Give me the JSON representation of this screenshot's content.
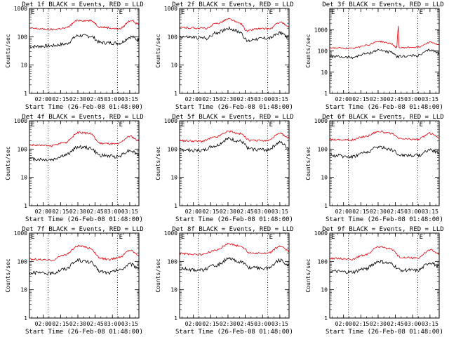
{
  "chart_data": [
    {
      "type": "line",
      "title": "Det 1f BLACK = Events, RED = LLD",
      "xlabel": "Start Time (26-Feb-08 01:48:00)",
      "ylabel": "Counts/sec",
      "x_ticks": [
        "02:00",
        "02:15",
        "02:30",
        "02:45",
        "03:00",
        "03:15"
      ],
      "y_ticks": [
        "1",
        "10",
        "100",
        "1000"
      ],
      "ylim": [
        1,
        1000
      ],
      "y_scale": "log",
      "top_markers": [
        "E",
        "E"
      ],
      "series": [
        {
          "name": "Events",
          "color": "#000000",
          "shape": [
            [
              0,
              45
            ],
            [
              0.2,
              48
            ],
            [
              0.32,
              55
            ],
            [
              0.45,
              110
            ],
            [
              0.56,
              105
            ],
            [
              0.65,
              62
            ],
            [
              0.82,
              60
            ],
            [
              0.93,
              100
            ],
            [
              1,
              75
            ]
          ]
        },
        {
          "name": "LLD",
          "color": "#e8000b",
          "shape": [
            [
              0,
              200
            ],
            [
              0.2,
              180
            ],
            [
              0.32,
              200
            ],
            [
              0.45,
              380
            ],
            [
              0.56,
              370
            ],
            [
              0.65,
              220
            ],
            [
              0.82,
              190
            ],
            [
              0.93,
              380
            ],
            [
              1,
              270
            ]
          ]
        }
      ]
    },
    {
      "type": "line",
      "title": "Det 2f BLACK = Events, RED = LLD",
      "xlabel": "Start Time (26-Feb-08 01:48:00)",
      "ylabel": "Counts/sec",
      "x_ticks": [
        "02:00",
        "02:15",
        "02:30",
        "02:45",
        "03:00",
        "03:15"
      ],
      "y_ticks": [
        "1",
        "10",
        "100",
        "1000"
      ],
      "ylim": [
        1,
        1000
      ],
      "y_scale": "log",
      "top_markers": [
        "E",
        "E"
      ],
      "series": [
        {
          "name": "Events",
          "color": "#000000",
          "shape": [
            [
              0,
              100
            ],
            [
              0.25,
              90
            ],
            [
              0.34,
              140
            ],
            [
              0.45,
              200
            ],
            [
              0.55,
              150
            ],
            [
              0.62,
              70
            ],
            [
              0.7,
              85
            ],
            [
              0.82,
              90
            ],
            [
              0.92,
              140
            ],
            [
              1,
              95
            ]
          ]
        },
        {
          "name": "LLD",
          "color": "#e8000b",
          "shape": [
            [
              0,
              210
            ],
            [
              0.25,
              200
            ],
            [
              0.34,
              300
            ],
            [
              0.45,
              420
            ],
            [
              0.55,
              300
            ],
            [
              0.62,
              160
            ],
            [
              0.7,
              190
            ],
            [
              0.82,
              190
            ],
            [
              0.92,
              330
            ],
            [
              1,
              220
            ]
          ]
        }
      ]
    },
    {
      "type": "line",
      "title": "Det 3f BLACK = Events, RED = LLD",
      "xlabel": "Start Time (26-Feb-08 01:48:00)",
      "ylabel": "Counts/sec",
      "x_ticks": [
        "02:00",
        "02:15",
        "02:30",
        "02:45",
        "03:00",
        "03:15"
      ],
      "y_ticks": [
        "1",
        "10",
        "100",
        "1000"
      ],
      "ylim": [
        1,
        10000
      ],
      "y_scale": "log",
      "top_markers": [
        "E",
        "E"
      ],
      "series": [
        {
          "name": "Events",
          "color": "#000000",
          "shape": [
            [
              0,
              55
            ],
            [
              0.2,
              50
            ],
            [
              0.34,
              75
            ],
            [
              0.45,
              110
            ],
            [
              0.55,
              90
            ],
            [
              0.62,
              55
            ],
            [
              0.8,
              60
            ],
            [
              0.92,
              110
            ],
            [
              1,
              80
            ]
          ]
        },
        {
          "name": "LLD",
          "color": "#e8000b",
          "shape": [
            [
              0,
              140
            ],
            [
              0.2,
              130
            ],
            [
              0.34,
              190
            ],
            [
              0.45,
              280
            ],
            [
              0.55,
              230
            ],
            [
              0.62,
              140
            ],
            [
              0.8,
              150
            ],
            [
              0.92,
              260
            ],
            [
              1,
              190
            ]
          ]
        }
      ]
    },
    {
      "type": "line",
      "title": "Det 4f BLACK = Events, RED = LLD",
      "xlabel": "Start Time (26-Feb-08 01:48:00)",
      "ylabel": "Counts/sec",
      "x_ticks": [
        "02:00",
        "02:15",
        "02:30",
        "02:45",
        "03:00",
        "03:15"
      ],
      "y_ticks": [
        "1",
        "10",
        "100",
        "1000"
      ],
      "ylim": [
        1,
        1000
      ],
      "y_scale": "log",
      "top_markers": [
        "E",
        "E"
      ],
      "series": [
        {
          "name": "Events",
          "color": "#000000",
          "shape": [
            [
              0,
              45
            ],
            [
              0.2,
              42
            ],
            [
              0.32,
              60
            ],
            [
              0.45,
              120
            ],
            [
              0.55,
              110
            ],
            [
              0.65,
              60
            ],
            [
              0.8,
              55
            ],
            [
              0.92,
              90
            ],
            [
              1,
              65
            ]
          ]
        },
        {
          "name": "LLD",
          "color": "#e8000b",
          "shape": [
            [
              0,
              140
            ],
            [
              0.2,
              130
            ],
            [
              0.32,
              170
            ],
            [
              0.45,
              380
            ],
            [
              0.55,
              360
            ],
            [
              0.65,
              160
            ],
            [
              0.8,
              150
            ],
            [
              0.92,
              280
            ],
            [
              1,
              200
            ]
          ]
        }
      ]
    },
    {
      "type": "line",
      "title": "Det 5f BLACK = Events, RED = LLD",
      "xlabel": "Start Time (26-Feb-08 01:48:00)",
      "ylabel": "Counts/sec",
      "x_ticks": [
        "02:00",
        "02:15",
        "02:30",
        "02:45",
        "03:00",
        "03:15"
      ],
      "y_ticks": [
        "1",
        "10",
        "100",
        "1000"
      ],
      "ylim": [
        1,
        1000
      ],
      "y_scale": "log",
      "top_markers": [
        "E",
        "E"
      ],
      "series": [
        {
          "name": "Events",
          "color": "#000000",
          "shape": [
            [
              0,
              95
            ],
            [
              0.2,
              90
            ],
            [
              0.32,
              130
            ],
            [
              0.45,
              230
            ],
            [
              0.55,
              190
            ],
            [
              0.65,
              100
            ],
            [
              0.8,
              95
            ],
            [
              0.92,
              170
            ],
            [
              1,
              110
            ]
          ]
        },
        {
          "name": "LLD",
          "color": "#e8000b",
          "shape": [
            [
              0,
              200
            ],
            [
              0.2,
              190
            ],
            [
              0.32,
              260
            ],
            [
              0.45,
              420
            ],
            [
              0.55,
              350
            ],
            [
              0.65,
              200
            ],
            [
              0.8,
              200
            ],
            [
              0.92,
              350
            ],
            [
              1,
              240
            ]
          ]
        }
      ]
    },
    {
      "type": "line",
      "title": "Det 6f BLACK = Events, RED = LLD",
      "xlabel": "Start Time (26-Feb-08 01:48:00)",
      "ylabel": "Counts/sec",
      "x_ticks": [
        "02:00",
        "02:15",
        "02:30",
        "02:45",
        "03:00",
        "03:15"
      ],
      "y_ticks": [
        "1",
        "10",
        "100",
        "1000"
      ],
      "ylim": [
        1,
        1000
      ],
      "y_scale": "log",
      "top_markers": [
        "E",
        "E"
      ],
      "series": [
        {
          "name": "Events",
          "color": "#000000",
          "shape": [
            [
              0,
              60
            ],
            [
              0.2,
              55
            ],
            [
              0.32,
              75
            ],
            [
              0.45,
              120
            ],
            [
              0.55,
              100
            ],
            [
              0.65,
              62
            ],
            [
              0.8,
              60
            ],
            [
              0.92,
              95
            ],
            [
              1,
              75
            ]
          ]
        },
        {
          "name": "LLD",
          "color": "#e8000b",
          "shape": [
            [
              0,
              220
            ],
            [
              0.2,
              210
            ],
            [
              0.32,
              280
            ],
            [
              0.45,
              420
            ],
            [
              0.55,
              360
            ],
            [
              0.65,
              230
            ],
            [
              0.8,
              220
            ],
            [
              0.92,
              360
            ],
            [
              1,
              260
            ]
          ]
        }
      ]
    },
    {
      "type": "line",
      "title": "Det 7f BLACK = Events, RED = LLD",
      "xlabel": "Start Time (26-Feb-08 01:48:00)",
      "ylabel": "Counts/sec",
      "x_ticks": [
        "02:00",
        "02:15",
        "02:30",
        "02:45",
        "03:00",
        "03:15"
      ],
      "y_ticks": [
        "1",
        "10",
        "100",
        "1000"
      ],
      "ylim": [
        1,
        1000
      ],
      "y_scale": "log",
      "top_markers": [
        "E",
        "E"
      ],
      "series": [
        {
          "name": "Events",
          "color": "#000000",
          "shape": [
            [
              0,
              40
            ],
            [
              0.2,
              38
            ],
            [
              0.32,
              55
            ],
            [
              0.45,
              110
            ],
            [
              0.55,
              95
            ],
            [
              0.65,
              45
            ],
            [
              0.72,
              40
            ],
            [
              0.82,
              50
            ],
            [
              0.92,
              80
            ],
            [
              1,
              60
            ]
          ]
        },
        {
          "name": "LLD",
          "color": "#e8000b",
          "shape": [
            [
              0,
              120
            ],
            [
              0.2,
              110
            ],
            [
              0.32,
              170
            ],
            [
              0.45,
              350
            ],
            [
              0.55,
              300
            ],
            [
              0.65,
              130
            ],
            [
              0.72,
              115
            ],
            [
              0.82,
              140
            ],
            [
              0.92,
              250
            ],
            [
              1,
              170
            ]
          ]
        }
      ]
    },
    {
      "type": "line",
      "title": "Det 8f BLACK = Events, RED = LLD",
      "xlabel": "Start Time (26-Feb-08 01:48:00)",
      "ylabel": "Counts/sec",
      "x_ticks": [
        "02:00",
        "02:15",
        "02:30",
        "02:45",
        "03:00",
        "03:15"
      ],
      "y_ticks": [
        "1",
        "10",
        "100",
        "1000"
      ],
      "ylim": [
        1,
        1000
      ],
      "y_scale": "log",
      "top_markers": [
        "E",
        "E"
      ],
      "series": [
        {
          "name": "Events",
          "color": "#000000",
          "shape": [
            [
              0,
              55
            ],
            [
              0.2,
              50
            ],
            [
              0.32,
              70
            ],
            [
              0.45,
              120
            ],
            [
              0.55,
              100
            ],
            [
              0.65,
              60
            ],
            [
              0.8,
              58
            ],
            [
              0.92,
              110
            ],
            [
              1,
              75
            ]
          ]
        },
        {
          "name": "LLD",
          "color": "#e8000b",
          "shape": [
            [
              0,
              190
            ],
            [
              0.2,
              175
            ],
            [
              0.32,
              240
            ],
            [
              0.45,
              420
            ],
            [
              0.55,
              350
            ],
            [
              0.65,
              200
            ],
            [
              0.8,
              190
            ],
            [
              0.92,
              340
            ],
            [
              1,
              230
            ]
          ]
        }
      ]
    },
    {
      "type": "line",
      "title": "Det 9f BLACK = Events, RED = LLD",
      "xlabel": "Start Time (26-Feb-08 01:48:00)",
      "ylabel": "Counts/sec",
      "x_ticks": [
        "02:00",
        "02:15",
        "02:30",
        "02:45",
        "03:00",
        "03:15"
      ],
      "y_ticks": [
        "1",
        "10",
        "100",
        "1000"
      ],
      "ylim": [
        1,
        1000
      ],
      "y_scale": "log",
      "top_markers": [
        "E",
        "E"
      ],
      "series": [
        {
          "name": "Events",
          "color": "#000000",
          "shape": [
            [
              0,
              45
            ],
            [
              0.2,
              42
            ],
            [
              0.32,
              55
            ],
            [
              0.45,
              100
            ],
            [
              0.55,
              85
            ],
            [
              0.65,
              50
            ],
            [
              0.8,
              48
            ],
            [
              0.92,
              90
            ],
            [
              1,
              65
            ]
          ]
        },
        {
          "name": "LLD",
          "color": "#e8000b",
          "shape": [
            [
              0,
              130
            ],
            [
              0.2,
              120
            ],
            [
              0.32,
              170
            ],
            [
              0.45,
              330
            ],
            [
              0.55,
              280
            ],
            [
              0.65,
              140
            ],
            [
              0.8,
              130
            ],
            [
              0.92,
              260
            ],
            [
              1,
              180
            ]
          ]
        }
      ]
    }
  ]
}
